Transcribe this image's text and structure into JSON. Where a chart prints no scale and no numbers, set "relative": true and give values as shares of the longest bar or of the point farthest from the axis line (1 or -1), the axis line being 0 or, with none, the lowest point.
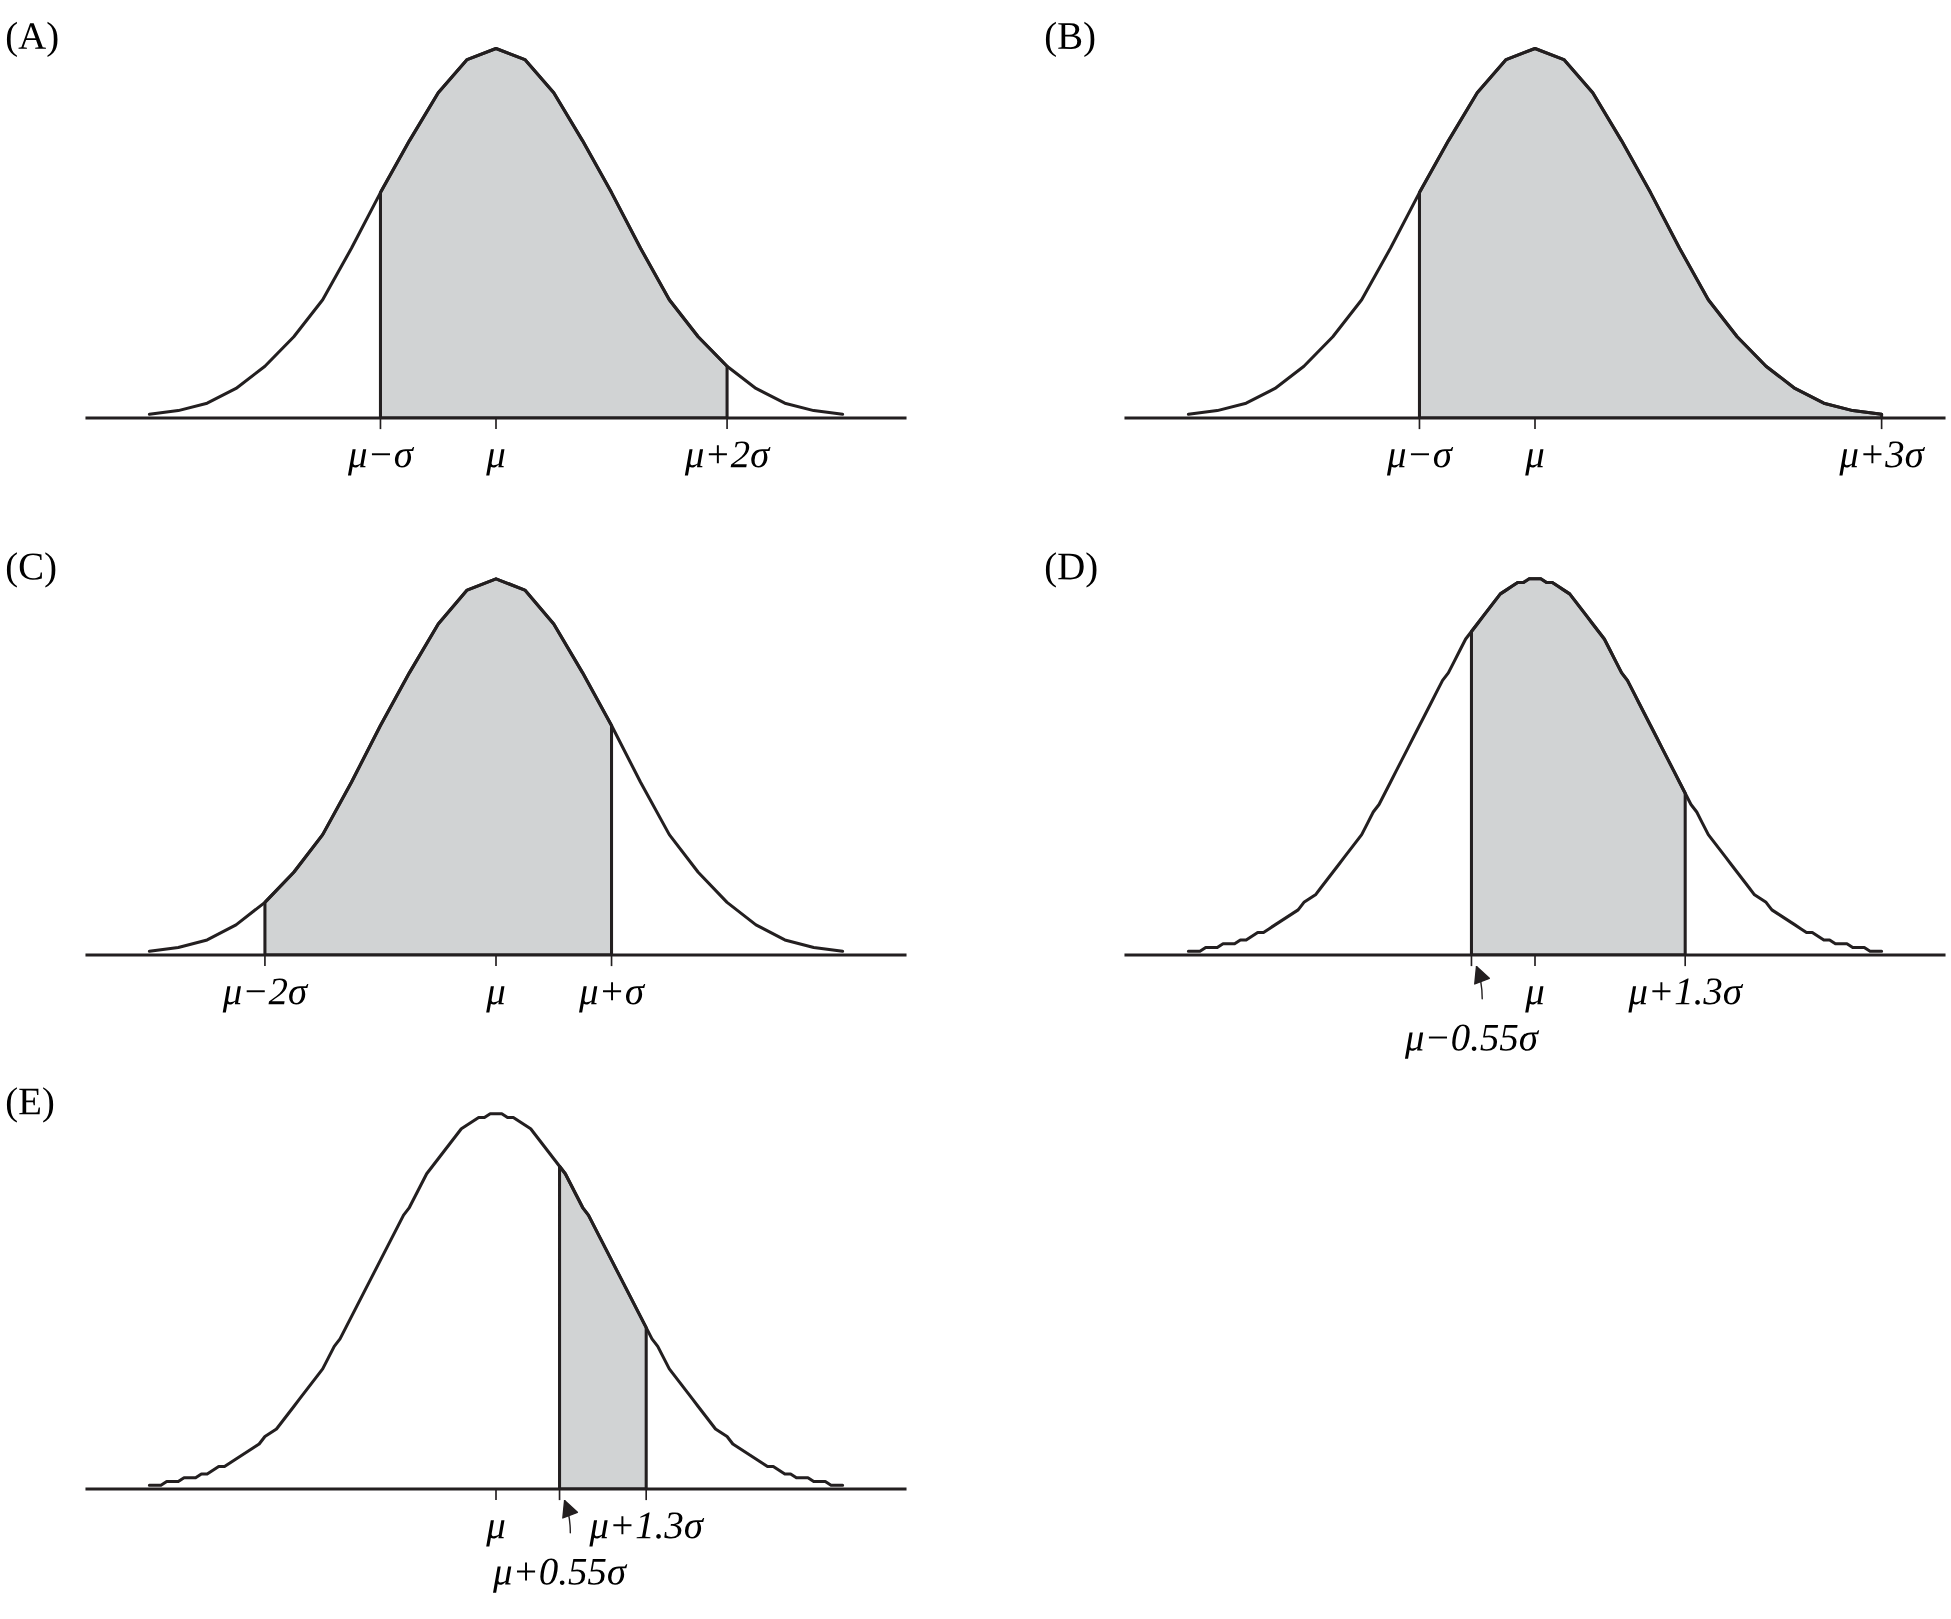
{
  "chart_data": [
    {
      "type": "line",
      "title": "(A)",
      "relative": true,
      "tick_labels": "x",
      "categories": [
        null,
        null,
        null,
        null,
        null,
        null,
        null,
        null,
        "μ−σ",
        null,
        null,
        null,
        "μ",
        null,
        null,
        null,
        null,
        null,
        null,
        null,
        "μ+2σ",
        null,
        null,
        null,
        null
      ],
      "series": [
        {
          "color": "#231f20",
          "values": [
            0.01,
            0.02,
            0.04,
            0.08,
            0.14,
            0.22,
            0.32,
            0.46,
            0.61,
            0.75,
            0.88,
            0.97,
            1,
            0.97,
            0.88,
            0.75,
            0.61,
            0.46,
            0.32,
            0.22,
            0.14,
            0.08,
            0.04,
            0.02,
            0.01
          ]
        },
        {
          "type": "area",
          "color": "#d1d3d4",
          "values": [
            null,
            null,
            null,
            null,
            null,
            null,
            null,
            null,
            0.61,
            0.75,
            0.88,
            0.97,
            1,
            0.97,
            0.88,
            0.75,
            0.61,
            0.46,
            0.32,
            0.22,
            0.14,
            null,
            null,
            null,
            null
          ]
        }
      ]
    },
    {
      "type": "line",
      "title": "(B)",
      "relative": true,
      "tick_labels": "x",
      "categories": [
        null,
        null,
        null,
        null,
        null,
        null,
        null,
        null,
        "μ−σ",
        null,
        null,
        null,
        "μ",
        null,
        null,
        null,
        null,
        null,
        null,
        null,
        null,
        null,
        null,
        null,
        "μ+3σ"
      ],
      "series": [
        {
          "color": "#231f20",
          "values": [
            0.01,
            0.02,
            0.04,
            0.08,
            0.14,
            0.22,
            0.32,
            0.46,
            0.61,
            0.75,
            0.88,
            0.97,
            1,
            0.97,
            0.88,
            0.75,
            0.61,
            0.46,
            0.32,
            0.22,
            0.14,
            0.08,
            0.04,
            0.02,
            0.01
          ]
        },
        {
          "type": "area",
          "color": "#d1d3d4",
          "values": [
            null,
            null,
            null,
            null,
            null,
            null,
            null,
            null,
            0.61,
            0.75,
            0.88,
            0.97,
            1,
            0.97,
            0.88,
            0.75,
            0.61,
            0.46,
            0.32,
            0.22,
            0.14,
            0.08,
            0.04,
            0.02,
            0.01
          ]
        }
      ]
    },
    {
      "type": "line",
      "title": "(C)",
      "relative": true,
      "tick_labels": "x",
      "categories": [
        null,
        null,
        null,
        null,
        "μ−2σ",
        null,
        null,
        null,
        null,
        null,
        null,
        null,
        "μ",
        null,
        null,
        null,
        "μ+σ",
        null,
        null,
        null,
        null,
        null,
        null,
        null,
        null
      ],
      "series": [
        {
          "color": "#231f20",
          "values": [
            0.01,
            0.02,
            0.04,
            0.08,
            0.14,
            0.22,
            0.32,
            0.46,
            0.61,
            0.75,
            0.88,
            0.97,
            1,
            0.97,
            0.88,
            0.75,
            0.61,
            0.46,
            0.32,
            0.22,
            0.14,
            0.08,
            0.04,
            0.02,
            0.01
          ]
        },
        {
          "type": "area",
          "color": "#d1d3d4",
          "values": [
            null,
            null,
            null,
            null,
            0.14,
            0.22,
            0.32,
            0.46,
            0.61,
            0.75,
            0.88,
            0.97,
            1,
            0.97,
            0.88,
            0.75,
            0.61,
            null,
            null,
            null,
            null,
            null,
            null,
            null,
            null
          ]
        }
      ]
    },
    {
      "type": "line",
      "title": "(D)",
      "relative": true,
      "tick_labels": "x",
      "categories": [
        null,
        null,
        null,
        null,
        null,
        null,
        null,
        null,
        null,
        null,
        null,
        null,
        null,
        null,
        null,
        null,
        null,
        null,
        null,
        null,
        null,
        null,
        null,
        null,
        null,
        null,
        null,
        null,
        null,
        null,
        null,
        null,
        null,
        null,
        null,
        null,
        null,
        null,
        null,
        null,
        null,
        null,
        null,
        null,
        null,
        null,
        null,
        null,
        null,
        "μ−0.55σ",
        null,
        null,
        null,
        null,
        null,
        null,
        null,
        null,
        null,
        null,
        "μ",
        null,
        null,
        null,
        null,
        null,
        null,
        null,
        null,
        null,
        null,
        null,
        null,
        null,
        null,
        null,
        null,
        null,
        null,
        null,
        null,
        null,
        null,
        null,
        null,
        null,
        "μ+1.3σ",
        null,
        null,
        null,
        null,
        null,
        null,
        null,
        null,
        null,
        null,
        null,
        null,
        null,
        null,
        null,
        null,
        null,
        null,
        null,
        null,
        null,
        null,
        null,
        null,
        null,
        null,
        null,
        null,
        null,
        null,
        null,
        null,
        null,
        null
      ],
      "series": [
        {
          "color": "#231f20",
          "values": [
            0.01,
            0.01,
            0.01,
            0.02,
            0.02,
            0.02,
            0.03,
            0.03,
            0.03,
            0.04,
            0.04,
            0.05,
            0.06,
            0.06,
            0.07,
            0.08,
            0.09,
            0.1,
            0.11,
            0.12,
            0.14,
            0.15,
            0.16,
            0.18,
            0.2,
            0.22,
            0.24,
            0.26,
            0.28,
            0.3,
            0.32,
            0.35,
            0.38,
            0.4,
            0.43,
            0.46,
            0.49,
            0.52,
            0.55,
            0.58,
            0.61,
            0.64,
            0.67,
            0.7,
            0.73,
            0.75,
            0.78,
            0.81,
            0.84,
            0.86,
            0.88,
            0.9,
            0.92,
            0.94,
            0.96,
            0.97,
            0.98,
            0.99,
            0.99,
            1,
            1,
            1,
            0.99,
            0.99,
            0.98,
            0.97,
            0.96,
            0.94,
            0.92,
            0.9,
            0.88,
            0.86,
            0.84,
            0.81,
            0.78,
            0.75,
            0.73,
            0.7,
            0.67,
            0.64,
            0.61,
            0.58,
            0.55,
            0.52,
            0.49,
            0.46,
            0.43,
            0.4,
            0.38,
            0.35,
            0.32,
            0.3,
            0.28,
            0.26,
            0.24,
            0.22,
            0.2,
            0.18,
            0.16,
            0.15,
            0.14,
            0.12,
            0.11,
            0.1,
            0.09,
            0.08,
            0.07,
            0.06,
            0.06,
            0.05,
            0.04,
            0.04,
            0.03,
            0.03,
            0.03,
            0.02,
            0.02,
            0.02,
            0.01,
            0.01,
            0.01
          ]
        },
        {
          "type": "area",
          "color": "#d1d3d4",
          "values": [
            null,
            null,
            null,
            null,
            null,
            null,
            null,
            null,
            null,
            null,
            null,
            null,
            null,
            null,
            null,
            null,
            null,
            null,
            null,
            null,
            null,
            null,
            null,
            null,
            null,
            null,
            null,
            null,
            null,
            null,
            null,
            null,
            null,
            null,
            null,
            null,
            null,
            null,
            null,
            null,
            null,
            null,
            null,
            null,
            null,
            null,
            null,
            null,
            null,
            0.86,
            0.88,
            0.9,
            0.92,
            0.94,
            0.96,
            0.97,
            0.98,
            0.99,
            0.99,
            1,
            1,
            1,
            0.99,
            0.99,
            0.98,
            0.97,
            0.96,
            0.94,
            0.92,
            0.9,
            0.88,
            0.86,
            0.84,
            0.81,
            0.78,
            0.75,
            0.73,
            0.7,
            0.67,
            0.64,
            0.61,
            0.58,
            0.55,
            0.52,
            0.49,
            0.46,
            0.43,
            null,
            null,
            null,
            null,
            null,
            null,
            null,
            null,
            null,
            null,
            null,
            null,
            null,
            null,
            null,
            null,
            null,
            null,
            null,
            null,
            null,
            null,
            null,
            null,
            null,
            null,
            null,
            null,
            null,
            null,
            null,
            null,
            null,
            null
          ]
        }
      ]
    },
    {
      "type": "line",
      "title": "(E)",
      "relative": true,
      "tick_labels": "x",
      "categories": [
        null,
        null,
        null,
        null,
        null,
        null,
        null,
        null,
        null,
        null,
        null,
        null,
        null,
        null,
        null,
        null,
        null,
        null,
        null,
        null,
        null,
        null,
        null,
        null,
        null,
        null,
        null,
        null,
        null,
        null,
        null,
        null,
        null,
        null,
        null,
        null,
        null,
        null,
        null,
        null,
        null,
        null,
        null,
        null,
        null,
        null,
        null,
        null,
        null,
        null,
        null,
        null,
        null,
        null,
        null,
        null,
        null,
        null,
        null,
        null,
        "μ",
        null,
        null,
        null,
        null,
        null,
        null,
        null,
        null,
        null,
        null,
        "μ+0.55σ",
        null,
        null,
        null,
        null,
        null,
        null,
        null,
        null,
        null,
        null,
        null,
        null,
        null,
        null,
        "μ+1.3σ",
        null,
        null,
        null,
        null,
        null,
        null,
        null,
        null,
        null,
        null,
        null,
        null,
        null,
        null,
        null,
        null,
        null,
        null,
        null,
        null,
        null,
        null,
        null,
        null,
        null,
        null,
        null,
        null,
        null,
        null,
        null,
        null,
        null,
        null
      ],
      "series": [
        {
          "color": "#231f20",
          "values": [
            0.01,
            0.01,
            0.01,
            0.02,
            0.02,
            0.02,
            0.03,
            0.03,
            0.03,
            0.04,
            0.04,
            0.05,
            0.06,
            0.06,
            0.07,
            0.08,
            0.09,
            0.1,
            0.11,
            0.12,
            0.14,
            0.15,
            0.16,
            0.18,
            0.2,
            0.22,
            0.24,
            0.26,
            0.28,
            0.3,
            0.32,
            0.35,
            0.38,
            0.4,
            0.43,
            0.46,
            0.49,
            0.52,
            0.55,
            0.58,
            0.61,
            0.64,
            0.67,
            0.7,
            0.73,
            0.75,
            0.78,
            0.81,
            0.84,
            0.86,
            0.88,
            0.9,
            0.92,
            0.94,
            0.96,
            0.97,
            0.98,
            0.99,
            0.99,
            1,
            1,
            1,
            0.99,
            0.99,
            0.98,
            0.97,
            0.96,
            0.94,
            0.92,
            0.9,
            0.88,
            0.86,
            0.84,
            0.81,
            0.78,
            0.75,
            0.73,
            0.7,
            0.67,
            0.64,
            0.61,
            0.58,
            0.55,
            0.52,
            0.49,
            0.46,
            0.43,
            0.4,
            0.38,
            0.35,
            0.32,
            0.3,
            0.28,
            0.26,
            0.24,
            0.22,
            0.2,
            0.18,
            0.16,
            0.15,
            0.14,
            0.12,
            0.11,
            0.1,
            0.09,
            0.08,
            0.07,
            0.06,
            0.06,
            0.05,
            0.04,
            0.04,
            0.03,
            0.03,
            0.03,
            0.02,
            0.02,
            0.02,
            0.01,
            0.01,
            0.01
          ]
        },
        {
          "type": "area",
          "color": "#d1d3d4",
          "values": [
            null,
            null,
            null,
            null,
            null,
            null,
            null,
            null,
            null,
            null,
            null,
            null,
            null,
            null,
            null,
            null,
            null,
            null,
            null,
            null,
            null,
            null,
            null,
            null,
            null,
            null,
            null,
            null,
            null,
            null,
            null,
            null,
            null,
            null,
            null,
            null,
            null,
            null,
            null,
            null,
            null,
            null,
            null,
            null,
            null,
            null,
            null,
            null,
            null,
            null,
            null,
            null,
            null,
            null,
            null,
            null,
            null,
            null,
            null,
            null,
            null,
            null,
            null,
            null,
            null,
            null,
            null,
            null,
            null,
            null,
            null,
            0.86,
            0.84,
            0.81,
            0.78,
            0.75,
            0.73,
            0.7,
            0.67,
            0.64,
            0.61,
            0.58,
            0.55,
            0.52,
            0.49,
            0.46,
            0.43,
            null,
            null,
            null,
            null,
            null,
            null,
            null,
            null,
            null,
            null,
            null,
            null,
            null,
            null,
            null,
            null,
            null,
            null,
            null,
            null,
            null,
            null,
            null,
            null,
            null,
            null,
            null,
            null,
            null,
            null,
            null,
            null,
            null,
            null
          ]
        }
      ]
    }
  ]
}
